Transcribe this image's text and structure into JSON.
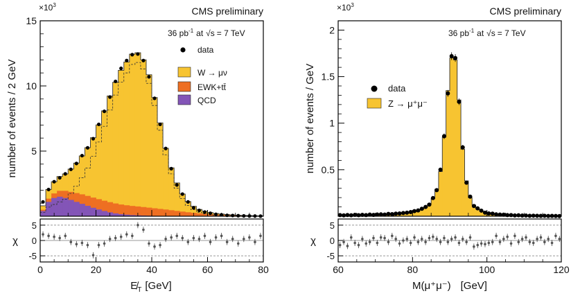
{
  "chart_data": [
    {
      "type": "histogram",
      "corner_label": "CMS preliminary",
      "lumi_prefix": "36 pb",
      "lumi_exp": "-1",
      "lumi_at": "at",
      "lumi_sqrt": "√s",
      "lumi_energy": "= 7 TeV",
      "scale_label": "×10",
      "scale_exp": "3",
      "xlabel": "E̸",
      "xlabel_sub": "T",
      "xlabel_unit": "[GeV]",
      "ylabel": "number of events / 2 GeV",
      "ratio_ylabel": "χ",
      "xlim": [
        0,
        80
      ],
      "ylim": [
        0,
        15000
      ],
      "xticks": [
        "0",
        "20",
        "40",
        "60",
        "80"
      ],
      "yticks": [
        "5",
        "10",
        "15"
      ],
      "ratio_yticks": [
        "5",
        "0",
        "-5"
      ],
      "legend": {
        "data": "data",
        "signal": "W → μν",
        "ewk": "EWK+tt̄",
        "qcd": "QCD"
      },
      "colors": {
        "signal": "#f7c431",
        "ewk": "#ee6f22",
        "qcd": "#8355b7",
        "data": "#000000"
      },
      "bin_edges": [
        0,
        2,
        4,
        6,
        8,
        10,
        12,
        14,
        16,
        18,
        20,
        22,
        24,
        26,
        28,
        30,
        32,
        34,
        36,
        38,
        40,
        42,
        44,
        46,
        48,
        50,
        52,
        54,
        56,
        58,
        60,
        62,
        64,
        66,
        68,
        70,
        72,
        74,
        76,
        78,
        80
      ],
      "series": [
        {
          "name": "QCD",
          "values": [
            400,
            1100,
            1400,
            1500,
            1400,
            1250,
            1100,
            950,
            800,
            650,
            520,
            400,
            300,
            220,
            160,
            120,
            90,
            70,
            55,
            40,
            30,
            22,
            16,
            12,
            9,
            7,
            5,
            4,
            3,
            2,
            2,
            1,
            1,
            1,
            1,
            0,
            0,
            0,
            0,
            0
          ]
        },
        {
          "name": "EWK+tt̄",
          "values": [
            100,
            250,
            350,
            450,
            550,
            620,
            680,
            730,
            760,
            780,
            790,
            790,
            780,
            760,
            740,
            720,
            700,
            680,
            650,
            620,
            580,
            540,
            500,
            450,
            400,
            350,
            300,
            260,
            220,
            190,
            160,
            130,
            110,
            90,
            70,
            55,
            45,
            35,
            25,
            20
          ]
        },
        {
          "name": "W → μν",
          "values": [
            300,
            700,
            900,
            1100,
            1300,
            1750,
            2300,
            2950,
            3700,
            4600,
            5700,
            6900,
            8150,
            9300,
            10300,
            11000,
            11650,
            11800,
            11300,
            10200,
            8500,
            6600,
            4700,
            3250,
            2150,
            1350,
            820,
            500,
            300,
            190,
            120,
            80,
            55,
            40,
            30,
            22,
            16,
            12,
            9,
            7
          ]
        }
      ],
      "data_points": [
        1100,
        2050,
        2650,
        2950,
        3250,
        3600,
        4050,
        4650,
        5250,
        5950,
        7050,
        8050,
        9150,
        10350,
        11350,
        11950,
        12400,
        12450,
        11950,
        10700,
        9050,
        7050,
        5200,
        3650,
        2400,
        1700,
        1100,
        650,
        450,
        320,
        230,
        150,
        110,
        70,
        55,
        40,
        25,
        20,
        15,
        10
      ],
      "pull": [
        2.0,
        1.5,
        1.2,
        0.8,
        1.5,
        -0.5,
        -1.2,
        -0.8,
        -1.5,
        -4.8,
        -1.5,
        -1.0,
        0.5,
        0.8,
        1.2,
        2.0,
        1.5,
        5.0,
        3.5,
        -1.0,
        -2.0,
        -1.5,
        0.5,
        1.0,
        1.5,
        0.8,
        -0.5,
        0.8,
        0.5,
        1.5,
        -0.5,
        1.0,
        1.5,
        -0.5,
        0.5,
        -1.0,
        0.5,
        1.0,
        -0.5,
        1.5
      ]
    },
    {
      "type": "histogram",
      "corner_label": "CMS preliminary",
      "lumi_prefix": "36 pb",
      "lumi_exp": "-1",
      "lumi_at": "at",
      "lumi_sqrt": "√s",
      "lumi_energy": "= 7 TeV",
      "scale_label": "×10",
      "scale_exp": "3",
      "xlabel": "M(μ⁺μ⁻)",
      "xlabel_unit": "[GeV]",
      "ylabel": "number of events / GeV",
      "ratio_ylabel": "χ",
      "xlim": [
        60,
        120
      ],
      "ylim": [
        0,
        2100
      ],
      "xticks": [
        "60",
        "80",
        "100",
        "120"
      ],
      "yticks": [
        "0.5",
        "1",
        "1.5",
        "2"
      ],
      "ratio_yticks": [
        "5",
        "0",
        "-5"
      ],
      "legend": {
        "data": "data",
        "signal": "Z → μ⁺μ⁻"
      },
      "colors": {
        "signal": "#f7c431",
        "data": "#000000"
      },
      "bin_edges": [
        60,
        61,
        62,
        63,
        64,
        65,
        66,
        67,
        68,
        69,
        70,
        71,
        72,
        73,
        74,
        75,
        76,
        77,
        78,
        79,
        80,
        81,
        82,
        83,
        84,
        85,
        86,
        87,
        88,
        89,
        90,
        91,
        92,
        93,
        94,
        95,
        96,
        97,
        98,
        99,
        100,
        101,
        102,
        103,
        104,
        105,
        106,
        107,
        108,
        109,
        110,
        111,
        112,
        113,
        114,
        115,
        116,
        117,
        118,
        119,
        120
      ],
      "series": [
        {
          "name": "Z → μ⁺μ⁻",
          "values": [
            10,
            10,
            11,
            11,
            12,
            12,
            13,
            14,
            15,
            16,
            17,
            18,
            20,
            22,
            24,
            26,
            29,
            32,
            36,
            42,
            50,
            60,
            75,
            95,
            130,
            190,
            290,
            480,
            850,
            1350,
            1700,
            1680,
            1250,
            720,
            380,
            200,
            120,
            80,
            55,
            40,
            32,
            26,
            22,
            18,
            15,
            13,
            11,
            10,
            9,
            8,
            7,
            6,
            6,
            5,
            5,
            4,
            4,
            4,
            3,
            3
          ]
        }
      ],
      "data_points": [
        12,
        9,
        13,
        10,
        15,
        11,
        15,
        12,
        18,
        14,
        19,
        20,
        18,
        25,
        22,
        28,
        30,
        34,
        38,
        45,
        55,
        62,
        80,
        100,
        125,
        195,
        280,
        500,
        860,
        1320,
        1720,
        1700,
        1230,
        740,
        360,
        210,
        110,
        85,
        60,
        38,
        30,
        28,
        20,
        18,
        17,
        12,
        12,
        8,
        10,
        7,
        7,
        5,
        6,
        5,
        4,
        5,
        3,
        4,
        3,
        2
      ],
      "pull": [
        -1.5,
        -0.5,
        -1.8,
        1.0,
        -0.8,
        -1.5,
        0.5,
        -1.0,
        -0.5,
        0.8,
        -0.8,
        1.0,
        0.8,
        -0.5,
        1.5,
        0.5,
        -1.0,
        0.0,
        0.5,
        -0.8,
        1.0,
        -0.5,
        0.5,
        -0.5,
        0.8,
        1.2,
        0.5,
        -0.5,
        0.8,
        -0.5,
        0.5,
        1.0,
        -0.8,
        0.5,
        -0.5,
        1.0,
        -2.0,
        -1.5,
        -1.0,
        -1.2,
        -0.8,
        -0.5,
        1.5,
        -0.5,
        0.5,
        1.2,
        -1.0,
        1.5,
        -0.5,
        0.5,
        1.0,
        -0.5,
        -0.8,
        0.5,
        1.0,
        -0.5,
        0.5,
        -0.8,
        1.5,
        0.5
      ]
    }
  ]
}
